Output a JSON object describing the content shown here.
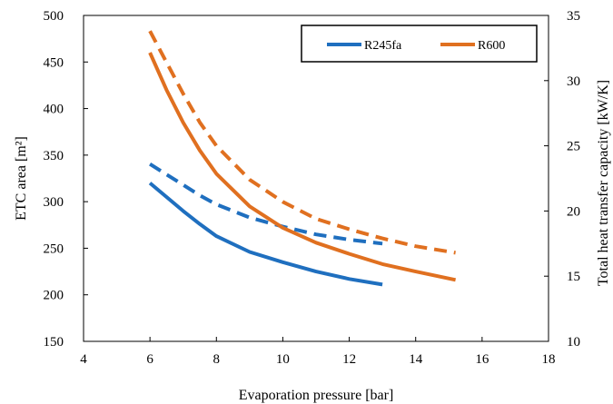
{
  "chart_data": {
    "type": "line",
    "xlabel": "Evaporation pressure [bar]",
    "ylabel_left": "ETC area [m²]",
    "ylabel_right": "Total heat transfer capacity [kW/K]",
    "xlim": [
      4,
      18
    ],
    "xticks": [
      "4",
      "6",
      "8",
      "10",
      "12",
      "14",
      "16",
      "18"
    ],
    "ylim_left": [
      150,
      500
    ],
    "yticks_left": [
      "150",
      "200",
      "250",
      "300",
      "350",
      "400",
      "450",
      "500"
    ],
    "ylim_right": [
      10,
      35
    ],
    "yticks_right": [
      "10",
      "15",
      "20",
      "25",
      "30",
      "35"
    ],
    "grid": false,
    "legend_position": "top-right",
    "legend": [
      {
        "name": "R245fa",
        "color": "#1f6fbf"
      },
      {
        "name": "R600",
        "color": "#e07020"
      }
    ],
    "series": [
      {
        "legend": "R245fa",
        "axis": "left",
        "style": "solid",
        "color": "#1f6fbf",
        "x": [
          6.0,
          6.5,
          7.0,
          7.5,
          8.0,
          9.0,
          10.0,
          11.0,
          12.0,
          13.0
        ],
        "y": [
          320,
          305,
          290,
          276,
          263,
          246,
          235,
          225,
          217,
          211
        ]
      },
      {
        "legend": "R245fa",
        "axis": "right",
        "style": "dashed",
        "color": "#1f6fbf",
        "x": [
          6.0,
          6.5,
          7.0,
          7.5,
          8.0,
          9.0,
          10.0,
          11.0,
          12.0,
          13.0
        ],
        "y": [
          23.6,
          22.8,
          22.0,
          21.2,
          20.5,
          19.5,
          18.8,
          18.2,
          17.8,
          17.5
        ]
      },
      {
        "legend": "R600",
        "axis": "left",
        "style": "solid",
        "color": "#e07020",
        "x": [
          6.0,
          6.5,
          7.0,
          7.5,
          8.0,
          9.0,
          10.0,
          11.0,
          12.0,
          13.0,
          14.0,
          15.2
        ],
        "y": [
          460,
          420,
          385,
          355,
          330,
          295,
          272,
          256,
          244,
          233,
          225,
          216
        ]
      },
      {
        "legend": "R600",
        "axis": "right",
        "style": "dashed",
        "color": "#e07020",
        "x": [
          6.0,
          6.5,
          7.0,
          7.5,
          8.0,
          9.0,
          10.0,
          11.0,
          12.0,
          13.0,
          14.0,
          15.2
        ],
        "y": [
          33.8,
          31.4,
          29.0,
          26.8,
          25.0,
          22.4,
          20.7,
          19.4,
          18.6,
          17.9,
          17.3,
          16.8
        ]
      }
    ]
  }
}
